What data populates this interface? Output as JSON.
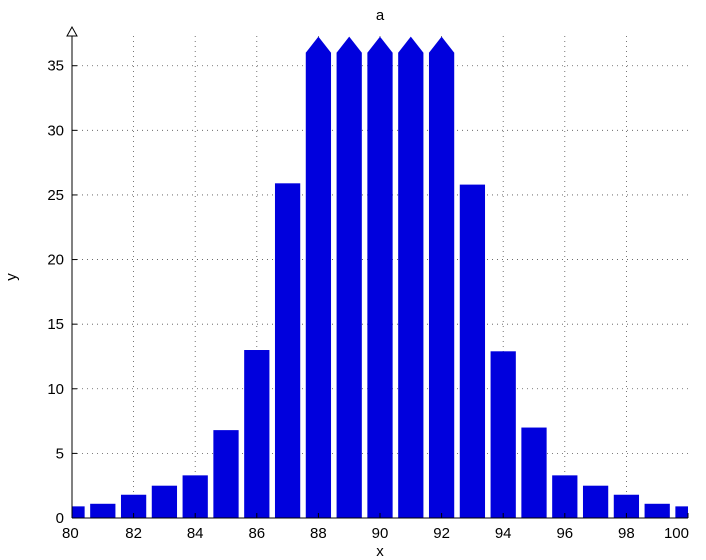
{
  "chart_data": {
    "type": "bar",
    "title": "a",
    "xlabel": "x",
    "ylabel": "y",
    "x": [
      80,
      81,
      82,
      83,
      84,
      85,
      86,
      87,
      88,
      89,
      90,
      91,
      92,
      93,
      94,
      95,
      96,
      97,
      98,
      99,
      100
    ],
    "values": [
      0.9,
      1.1,
      1.8,
      2.5,
      3.3,
      6.8,
      13.0,
      25.9,
      36.0,
      36.0,
      36.0,
      36.0,
      36.0,
      25.8,
      12.9,
      7.0,
      3.3,
      2.5,
      1.8,
      1.1,
      0.9
    ],
    "clipped": [
      false,
      false,
      false,
      false,
      false,
      false,
      false,
      false,
      true,
      true,
      true,
      true,
      true,
      false,
      false,
      false,
      false,
      false,
      false,
      false,
      false
    ],
    "xlim": [
      80,
      100
    ],
    "ylim": [
      0,
      37
    ],
    "xticks": [
      "80",
      "82",
      "84",
      "86",
      "88",
      "90",
      "92",
      "94",
      "96",
      "98",
      "100"
    ],
    "yticks": [
      "0",
      "5",
      "10",
      "15",
      "20",
      "25",
      "30",
      "35"
    ],
    "grid": true,
    "bar_color": "#0000dd"
  }
}
